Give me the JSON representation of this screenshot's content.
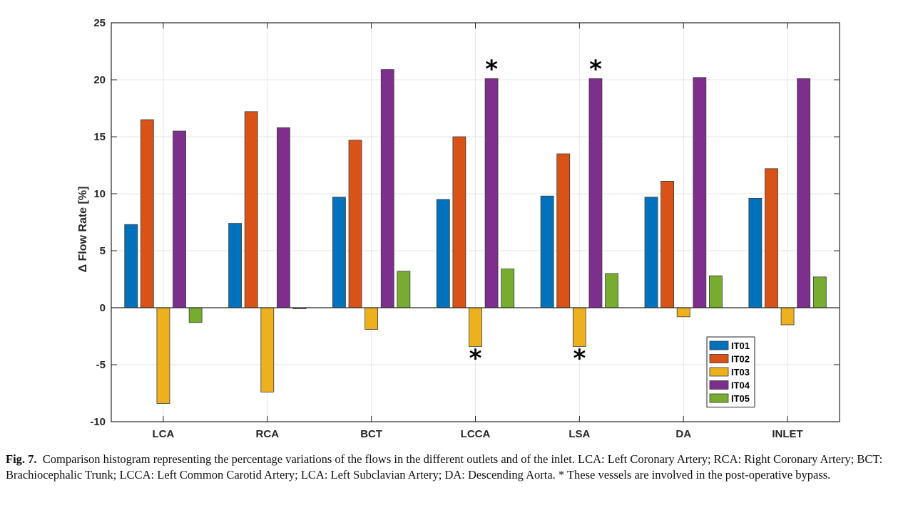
{
  "chart_data": {
    "type": "bar",
    "ylabel": "Δ Flow Rate [%]",
    "xlabel": "",
    "ylim": [
      -10,
      25
    ],
    "yticks": [
      -10,
      -5,
      0,
      5,
      10,
      15,
      20,
      25
    ],
    "grid": true,
    "legend_position": "bottom-right",
    "categories": [
      "LCA",
      "RCA",
      "BCT",
      "LCCA",
      "LSA",
      "DA",
      "INLET"
    ],
    "series": [
      {
        "name": "IT01",
        "color": "#0072BD",
        "values": [
          7.3,
          7.4,
          9.7,
          9.5,
          9.8,
          9.7,
          9.6
        ]
      },
      {
        "name": "IT02",
        "color": "#D95319",
        "values": [
          16.5,
          17.2,
          14.7,
          15.0,
          13.5,
          11.1,
          12.2
        ]
      },
      {
        "name": "IT03",
        "color": "#EDB120",
        "values": [
          -8.4,
          -7.4,
          -1.9,
          -3.4,
          -3.4,
          -0.8,
          -1.5
        ]
      },
      {
        "name": "IT04",
        "color": "#7E2F8E",
        "values": [
          15.5,
          15.8,
          20.9,
          20.1,
          20.1,
          20.2,
          20.1
        ]
      },
      {
        "name": "IT05",
        "color": "#77AC30",
        "values": [
          -1.3,
          -0.1,
          3.2,
          3.4,
          3.0,
          2.8,
          2.7
        ]
      }
    ],
    "annotations": [
      {
        "text": "*",
        "category": "LCCA",
        "series": "IT04"
      },
      {
        "text": "*",
        "category": "LSA",
        "series": "IT04"
      },
      {
        "text": "*",
        "category": "LCCA",
        "series": "IT03"
      },
      {
        "text": "*",
        "category": "LSA",
        "series": "IT03"
      }
    ]
  },
  "caption": {
    "label": "Fig. 7.",
    "text": "Comparison histogram representing the percentage variations of the flows in the different outlets and of the inlet. LCA: Left Coronary Artery; RCA: Right Coronary Artery; BCT: Brachiocephalic Trunk; LCCA: Left Common Carotid Artery; LCA: Left Subclavian Artery; DA: Descending Aorta. * These vessels are involved in the post-operative bypass."
  }
}
